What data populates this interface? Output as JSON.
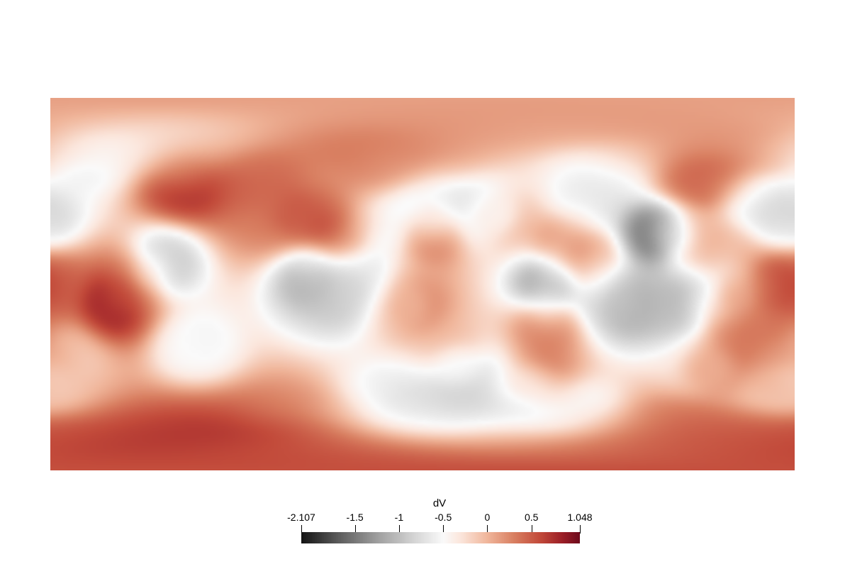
{
  "figure": {
    "map_type": "equirectangular-scalar-field",
    "scalar": "dV",
    "colormap": "black-gray-white-red (diverging)",
    "grid": false
  },
  "colorbar": {
    "title": "dV",
    "range": [
      -2.107,
      1.048
    ],
    "ticks": [
      {
        "value": -2.107,
        "label": "-2.107"
      },
      {
        "value": -1.5,
        "label": "-1.5"
      },
      {
        "value": -1,
        "label": "-1"
      },
      {
        "value": -0.5,
        "label": "-0.5"
      },
      {
        "value": 0,
        "label": "0"
      },
      {
        "value": 0.5,
        "label": "0.5"
      },
      {
        "value": 1.048,
        "label": "1.048"
      }
    ],
    "colors": [
      {
        "value": -2.107,
        "color": "#141414"
      },
      {
        "value": -1.7,
        "color": "#5a5a5a"
      },
      {
        "value": -1.2,
        "color": "#a6a6a6"
      },
      {
        "value": -0.8,
        "color": "#d8d8d8"
      },
      {
        "value": -0.5,
        "color": "#fafafa"
      },
      {
        "value": -0.3,
        "color": "#fbe6dc"
      },
      {
        "value": 0,
        "color": "#f0b69b"
      },
      {
        "value": 0.3,
        "color": "#d98062"
      },
      {
        "value": 0.6,
        "color": "#c24a3a"
      },
      {
        "value": 0.85,
        "color": "#9c1f27"
      },
      {
        "value": 1.048,
        "color": "#6e0a1c"
      }
    ]
  },
  "chart_data": {
    "type": "heatmap",
    "title": "",
    "xlabel": "",
    "ylabel": "",
    "value_label": "dV",
    "value_range": [
      -2.107,
      1.048
    ],
    "background_value": 0.15,
    "features": [
      {
        "lon": 135,
        "lat": 50,
        "value": 0.95
      },
      {
        "lon": 160,
        "lat": 65,
        "value": 0.3
      },
      {
        "lon": 115,
        "lat": 70,
        "value": 0.2
      },
      {
        "lon": 112,
        "lat": 25,
        "value": -2.1
      },
      {
        "lon": 30,
        "lat": 35,
        "value": -1.2
      },
      {
        "lon": 5,
        "lat": 40,
        "value": -1.1
      },
      {
        "lon": -20,
        "lat": 30,
        "value": -0.9
      },
      {
        "lon": 80,
        "lat": 38,
        "value": -0.8
      },
      {
        "lon": 90,
        "lat": 55,
        "value": -0.7
      },
      {
        "lon": 60,
        "lat": 0,
        "value": -1.6
      },
      {
        "lon": 100,
        "lat": -10,
        "value": -1.3
      },
      {
        "lon": 90,
        "lat": -5,
        "value": -0.9
      },
      {
        "lon": 130,
        "lat": -10,
        "value": -1.3
      },
      {
        "lon": 135,
        "lat": -40,
        "value": -0.8
      },
      {
        "lon": 150,
        "lat": -3,
        "value": -1.2
      },
      {
        "lon": 118,
        "lat": -12,
        "value": -1.1
      },
      {
        "lon": 68,
        "lat": 20,
        "value": 0.45
      },
      {
        "lon": 82,
        "lat": 12,
        "value": 0.35
      },
      {
        "lon": 20,
        "lat": -45,
        "value": -1.2
      },
      {
        "lon": 40,
        "lat": -50,
        "value": -1.1
      },
      {
        "lon": 70,
        "lat": -60,
        "value": -0.9
      },
      {
        "lon": 60,
        "lat": -20,
        "value": 0.5
      },
      {
        "lon": -15,
        "lat": -55,
        "value": -0.7
      },
      {
        "lon": 0,
        "lat": -62,
        "value": -1.0
      },
      {
        "lon": -40,
        "lat": 45,
        "value": 0.15
      },
      {
        "lon": 15,
        "lat": -35,
        "value": 0.2
      },
      {
        "lon": -55,
        "lat": 5,
        "value": -1.3
      },
      {
        "lon": -40,
        "lat": -5,
        "value": -1.0
      },
      {
        "lon": -30,
        "lat": 5,
        "value": -0.9
      },
      {
        "lon": -10,
        "lat": -10,
        "value": -0.4
      },
      {
        "lon": -125,
        "lat": 10,
        "value": -1.1
      },
      {
        "lon": -110,
        "lat": -30,
        "value": -0.6
      },
      {
        "lon": -160,
        "lat": 60,
        "value": -0.8
      },
      {
        "lon": -120,
        "lat": 65,
        "value": -0.3
      },
      {
        "lon": -55,
        "lat": -65,
        "value": 0.3
      },
      {
        "lon": -172,
        "lat": -35,
        "value": -0.3
      },
      {
        "lon": -20,
        "lat": 60,
        "value": 0.5
      },
      {
        "lon": 60,
        "lat": 80,
        "value": 0.2
      },
      {
        "lon": -55,
        "lat": 32,
        "value": 0.9
      },
      {
        "lon": -115,
        "lat": 48,
        "value": 0.95
      },
      {
        "lon": -80,
        "lat": 50,
        "value": 0.5
      },
      {
        "lon": -150,
        "lat": -10,
        "value": 1.05
      },
      {
        "lon": -140,
        "lat": 0,
        "value": 0.4
      },
      {
        "lon": -40,
        "lat": 25,
        "value": 0.8
      },
      {
        "lon": -70,
        "lat": 30,
        "value": 0.3
      },
      {
        "lon": 0,
        "lat": 60,
        "value": 0.2
      },
      {
        "lon": -110,
        "lat": -80,
        "value": 0.9
      },
      {
        "lon": -80,
        "lat": -80,
        "value": 1.0
      },
      {
        "lon": -140,
        "lat": -80,
        "value": 0.6
      },
      {
        "lon": -180,
        "lat": 0,
        "value": 0.5
      },
      {
        "lon": 5,
        "lat": 25,
        "value": 0.55
      },
      {
        "lon": -5,
        "lat": -10,
        "value": 0.6
      },
      {
        "lon": 38,
        "lat": 33,
        "value": 0.35
      },
      {
        "lon": 55,
        "lat": -45,
        "value": 0.75
      },
      {
        "lon": 170,
        "lat": 0,
        "value": 1.05
      },
      {
        "lon": 130,
        "lat": 22,
        "value": 0.2
      },
      {
        "lon": 155,
        "lat": -5,
        "value": 0.55
      },
      {
        "lon": 148,
        "lat": -15,
        "value": 0.7
      },
      {
        "lon": 143,
        "lat": -40,
        "value": 0.95
      },
      {
        "lon": 167,
        "lat": -30,
        "value": 0.5
      },
      {
        "lon": 175,
        "lat": -45,
        "value": 0.4
      },
      {
        "lon": 148,
        "lat": 15,
        "value": 0.1
      },
      {
        "lon": 163,
        "lat": 40,
        "value": -0.9
      },
      {
        "lon": 175,
        "lat": 30,
        "value": -1.0
      },
      {
        "lon": 172,
        "lat": -50,
        "value": -0.8
      },
      {
        "lon": 160,
        "lat": -10,
        "value": 0.3
      },
      {
        "lon": 120,
        "lat": -70,
        "value": 0.5
      },
      {
        "lon": 150,
        "lat": -75,
        "value": 0.6
      },
      {
        "lon": 175,
        "lat": -80,
        "value": 0.7
      },
      {
        "lon": 5,
        "lat": -85,
        "value": 0.15
      }
    ]
  }
}
